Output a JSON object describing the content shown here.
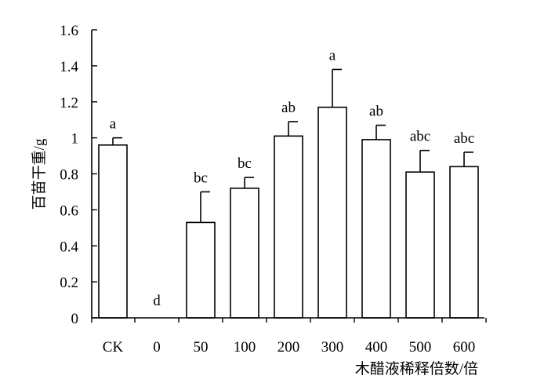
{
  "chart_data": {
    "type": "bar",
    "categories": [
      "CK",
      "0",
      "50",
      "100",
      "200",
      "300",
      "400",
      "500",
      "600"
    ],
    "values": [
      0.96,
      0.0,
      0.53,
      0.72,
      1.01,
      1.17,
      0.99,
      0.81,
      0.84
    ],
    "error_upper": [
      1.0,
      0.0,
      0.7,
      0.78,
      1.09,
      1.38,
      1.07,
      0.93,
      0.92
    ],
    "significance": [
      "a",
      "d",
      "bc",
      "bc",
      "ab",
      "a",
      "ab",
      "abc",
      "abc"
    ],
    "yticks": [
      "0",
      "0.2",
      "0.4",
      "0.6",
      "0.8",
      "1",
      "1.2",
      "1.4",
      "1.6"
    ],
    "ylim": [
      0,
      1.6
    ],
    "xlabel": "木醋液稀释倍数/倍",
    "ylabel": "百苗干重/g",
    "grid": false,
    "colors": {
      "bar_fill": "#ffffff",
      "bar_stroke": "#000000"
    }
  }
}
